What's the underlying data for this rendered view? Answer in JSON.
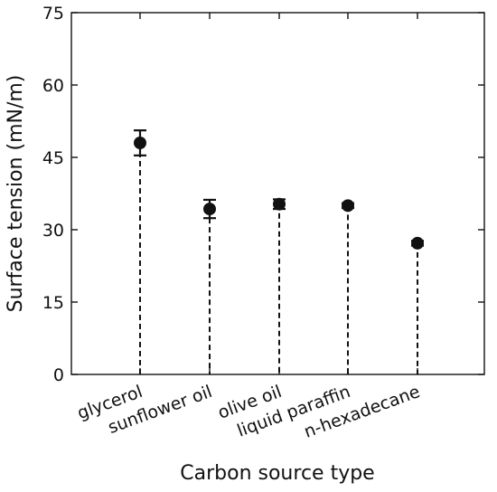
{
  "chart_data": {
    "type": "scatter",
    "title": "",
    "xlabel": "Carbon source type",
    "ylabel": "Surface tension (mN/m)",
    "ylim": [
      0,
      75
    ],
    "yticks": [
      "0",
      "15",
      "30",
      "45",
      "60",
      "75"
    ],
    "categories": [
      "glycerol",
      "sunflower oil",
      "olive oil",
      "liquid paraffin",
      "n-hexadecane"
    ],
    "values": [
      48.0,
      34.3,
      35.3,
      35.0,
      27.2
    ],
    "errors": [
      2.6,
      1.9,
      1.0,
      0.5,
      0.5
    ],
    "grid": false,
    "legend": "none",
    "marker_color": "#111111"
  }
}
